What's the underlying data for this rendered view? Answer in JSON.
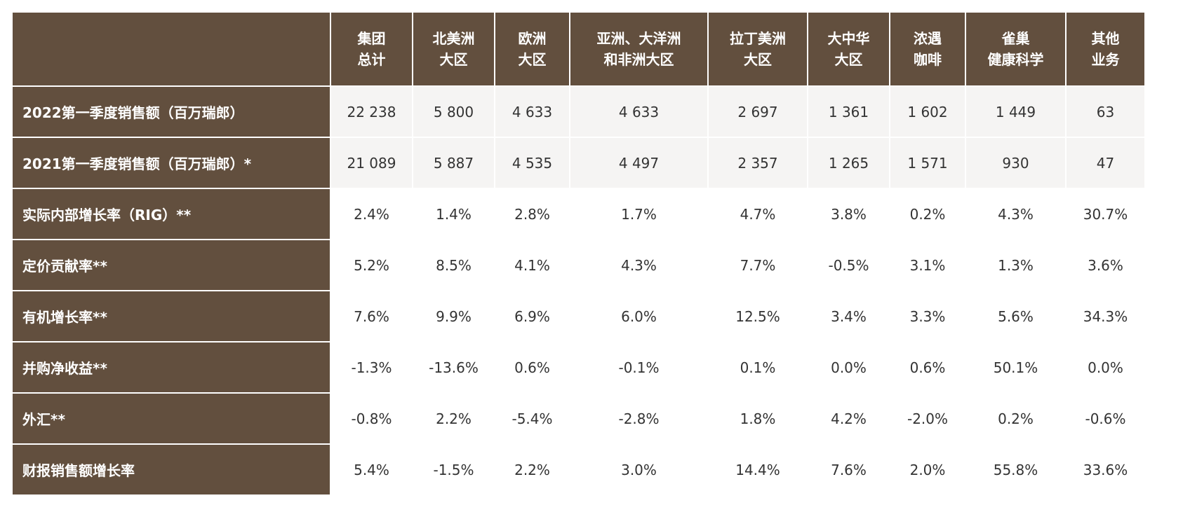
{
  "table": {
    "header": [
      "",
      "集团\n总计",
      "北美洲\n大区",
      "欧洲\n大区",
      "亚洲、大洋洲\n和非洲大区",
      "拉丁美洲\n大区",
      "大中华\n大区",
      "浓遇\n咖啡",
      "雀巢\n健康科学",
      "其他\n业务"
    ],
    "rows": [
      [
        "2022第一季度销售额（百万瑞郎）",
        "22 238",
        "5 800",
        "4 633",
        "4 633",
        "2 697",
        "1 361",
        "1 602",
        "1 449",
        "63"
      ],
      [
        "2021第一季度销售额（百万瑞郎）*",
        "21 089",
        "5 887",
        "4 535",
        "4 497",
        "2 357",
        "1 265",
        "1 571",
        "930",
        "47"
      ],
      [
        "实际内部增长率（RIG）**",
        "2.4%",
        "1.4%",
        "2.8%",
        "1.7%",
        "4.7%",
        "3.8%",
        "0.2%",
        "4.3%",
        "30.7%"
      ],
      [
        "定价贡献率**",
        "5.2%",
        "8.5%",
        "4.1%",
        "4.3%",
        "7.7%",
        "-0.5%",
        "3.1%",
        "1.3%",
        "3.6%"
      ],
      [
        "有机增长率**",
        "7.6%",
        "9.9%",
        "6.9%",
        "6.0%",
        "12.5%",
        "3.4%",
        "3.3%",
        "5.6%",
        "34.3%"
      ],
      [
        "并购净收益**",
        "-1.3%",
        "-13.6%",
        "0.6%",
        "-0.1%",
        "0.1%",
        "0.0%",
        "0.6%",
        "50.1%",
        "0.0%"
      ],
      [
        "外汇**",
        "-0.8%",
        "2.2%",
        "-5.4%",
        "-2.8%",
        "1.8%",
        "4.2%",
        "-2.0%",
        "0.2%",
        "-0.6%"
      ],
      [
        "财报销售额增长率",
        "5.4%",
        "-1.5%",
        "2.2%",
        "3.0%",
        "14.4%",
        "7.6%",
        "2.0%",
        "55.8%",
        "33.6%"
      ]
    ]
  }
}
